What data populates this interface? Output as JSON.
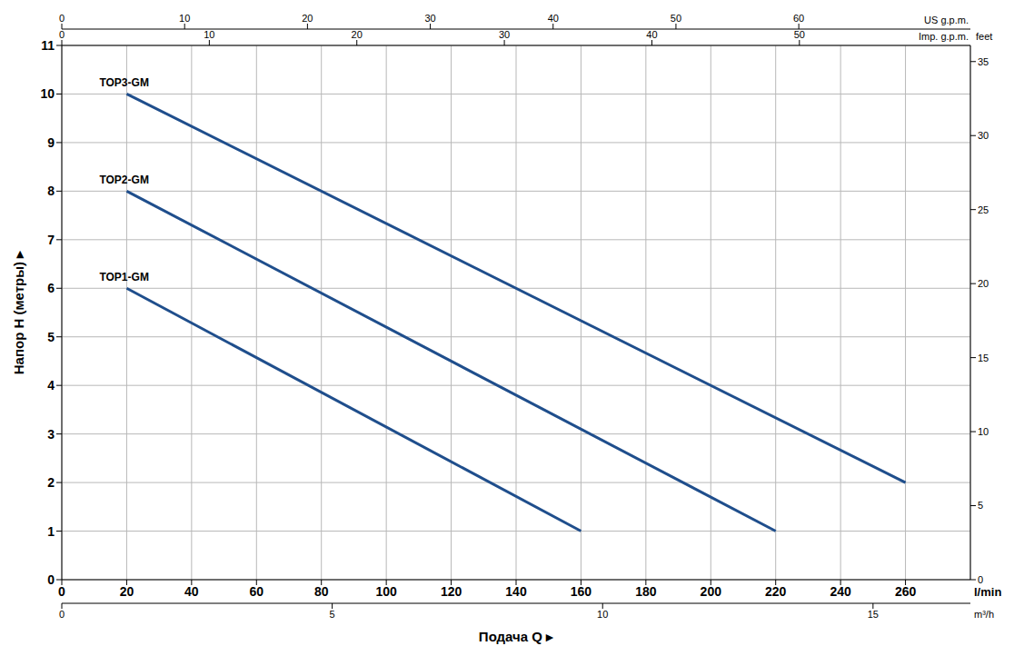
{
  "chart_data": {
    "type": "line",
    "y_label": "Напор H (метры) ▸",
    "x_label": "Подача Q ▸",
    "x_unit": "l/min",
    "xlim": [
      0,
      280
    ],
    "xticks": [
      0,
      20,
      40,
      60,
      80,
      100,
      120,
      140,
      160,
      180,
      200,
      220,
      240,
      260
    ],
    "ylim": [
      0,
      11
    ],
    "yticks": [
      0,
      1,
      2,
      3,
      4,
      5,
      6,
      7,
      8,
      9,
      10,
      11
    ],
    "y2_label": "feet",
    "y2lim": [
      0,
      36.09
    ],
    "y2ticks": [
      0,
      5,
      10,
      15,
      20,
      25,
      30,
      35
    ],
    "x2_label": "US g.p.m.",
    "x2lim": [
      0,
      73.97
    ],
    "x2ticks": [
      0,
      10,
      20,
      30,
      40,
      50,
      60
    ],
    "x3_label": "Imp. g.p.m.",
    "x3lim": [
      0,
      61.59
    ],
    "x3ticks": [
      0,
      10,
      20,
      30,
      40,
      50
    ],
    "x4_label": "m³/h",
    "x4lim": [
      0,
      16.8
    ],
    "x4ticks": [
      0,
      5,
      10,
      15
    ],
    "grid": true,
    "marker": "none",
    "line_style": "solid",
    "series": [
      {
        "name": "TOP1-GM",
        "color": "#1f4e8c",
        "x": [
          20,
          160
        ],
        "values": [
          6,
          1
        ]
      },
      {
        "name": "TOP2-GM",
        "color": "#1f4e8c",
        "x": [
          20,
          220
        ],
        "values": [
          8,
          1
        ]
      },
      {
        "name": "TOP3-GM",
        "color": "#1f4e8c",
        "x": [
          20,
          260
        ],
        "values": [
          10,
          2
        ]
      }
    ]
  }
}
